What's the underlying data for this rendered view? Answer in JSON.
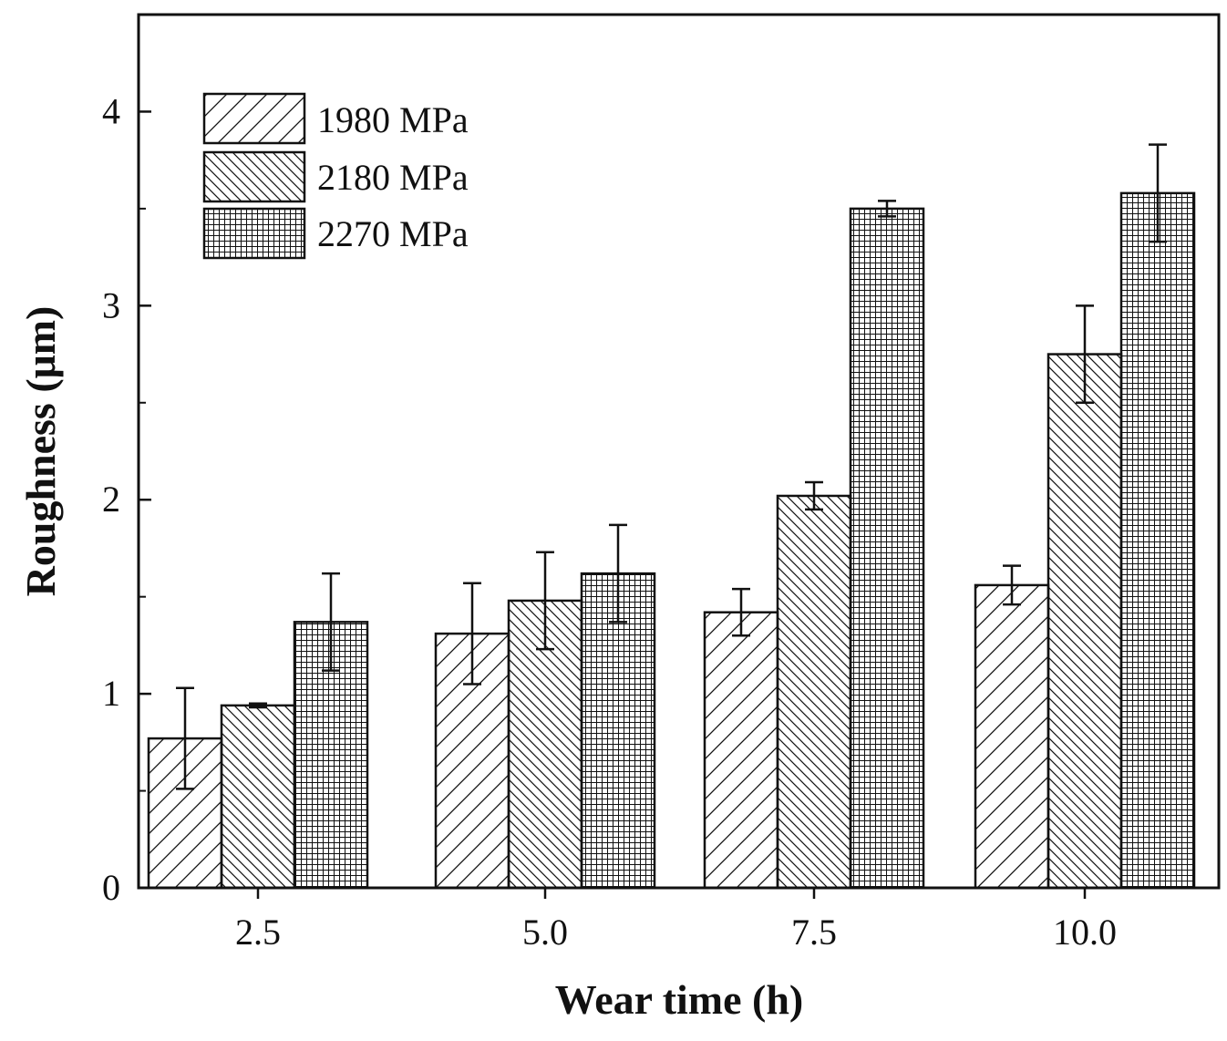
{
  "chart_data": {
    "type": "bar",
    "title": "",
    "xlabel": "Wear time (h)",
    "ylabel": "Roughness (μm)",
    "categories": [
      "2.5",
      "5.0",
      "7.5",
      "10.0"
    ],
    "ylim": [
      0,
      4.5
    ],
    "yticks": [
      0,
      1,
      2,
      3,
      4
    ],
    "ytick_labels": [
      "0",
      "1",
      "2",
      "3",
      "4"
    ],
    "series": [
      {
        "name": "1980 MPa",
        "pattern": "diagonal-forward",
        "values": [
          0.77,
          1.31,
          1.42,
          1.56
        ],
        "errors": [
          0.26,
          0.26,
          0.12,
          0.1
        ]
      },
      {
        "name": "2180 MPa",
        "pattern": "diagonal-backward",
        "values": [
          0.94,
          1.48,
          2.02,
          2.75
        ],
        "errors": [
          0.01,
          0.25,
          0.07,
          0.25
        ]
      },
      {
        "name": "2270 MPa",
        "pattern": "grid",
        "values": [
          1.37,
          1.62,
          3.5,
          3.58
        ],
        "errors": [
          0.25,
          0.25,
          0.04,
          0.25
        ]
      }
    ],
    "legend_position": "top-left",
    "grid": false,
    "colors": {
      "stroke": "#111111",
      "fill": "#ffffff"
    }
  }
}
